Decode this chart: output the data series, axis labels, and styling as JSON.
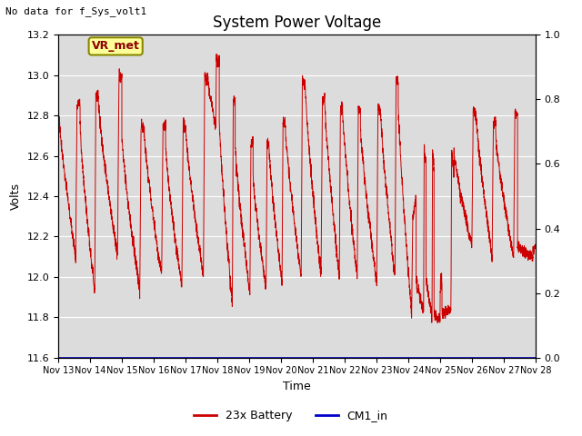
{
  "title": "System Power Voltage",
  "top_left_text": "No data for f_Sys_volt1",
  "xlabel": "Time",
  "ylabel": "Volts",
  "ylim_left": [
    11.6,
    13.2
  ],
  "ylim_right": [
    0.0,
    1.0
  ],
  "xlim": [
    0,
    15
  ],
  "x_tick_labels": [
    "Nov 13",
    "Nov 14",
    "Nov 15",
    "Nov 16",
    "Nov 17",
    "Nov 18",
    "Nov 19",
    "Nov 20",
    "Nov 21",
    "Nov 22",
    "Nov 23",
    "Nov 24",
    "Nov 25",
    "Nov 26",
    "Nov 27",
    "Nov 28"
  ],
  "x_tick_positions": [
    0,
    1,
    2,
    3,
    4,
    5,
    6,
    7,
    8,
    9,
    10,
    11,
    12,
    13,
    14,
    15
  ],
  "battery_color": "#cc0000",
  "cm1_color": "#0000cc",
  "legend_labels": [
    "23x Battery",
    "CM1_in"
  ],
  "vr_met_label": "VR_met",
  "background_color": "#dcdcdc",
  "title_fontsize": 12,
  "label_fontsize": 9,
  "tick_fontsize": 8
}
